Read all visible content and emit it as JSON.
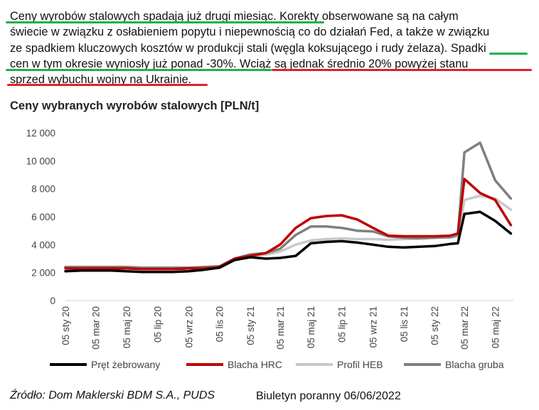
{
  "paragraph": {
    "lines": [
      "Ceny wyrobów stalowych spadają już drugi miesiąc. Korekty obserwowane są na całym",
      "świecie w związku z osłabieniem popytu i niepewnością co do działań Fed, a także w związku",
      "ze spadkiem kluczowych kosztów w produkcji stali (węgla koksującego i rudy żelaza). Spadki",
      "cen w tym okresie wyniosły już ponad -30%. Wciąż są jednak średnio 20% powyżej stanu",
      "sprzed wybuchu wojny na Ukrainie."
    ]
  },
  "highlights": {
    "green": "#22b04b",
    "red": "#e0202a"
  },
  "chart_title": "Ceny wybranych wyrobów stalowych [PLN/t]",
  "chart_data": {
    "type": "line",
    "title": "Ceny wybranych wyrobów stalowych [PLN/t]",
    "xlabel": "",
    "ylabel": "",
    "ylim": [
      0,
      12000
    ],
    "yticks": [
      0,
      2000,
      4000,
      6000,
      8000,
      10000,
      12000
    ],
    "ytick_labels": [
      "0",
      "2 000",
      "4 000",
      "6 000",
      "8 000",
      "10 000",
      "12 000"
    ],
    "xticks": [
      "05 sty 20",
      "05 mar 20",
      "05 maj 20",
      "05 lip 20",
      "05 wrz 20",
      "05 lis 20",
      "05 sty 21",
      "05 mar 21",
      "05 maj 21",
      "05 lip 21",
      "05 wrz 21",
      "05 lis 21",
      "05 sty 22",
      "05 mar 22",
      "05 maj 22"
    ],
    "grid": false,
    "legend_position": "bottom",
    "x": [
      "2020-01-05",
      "2020-02-05",
      "2020-03-05",
      "2020-04-05",
      "2020-05-05",
      "2020-06-05",
      "2020-07-05",
      "2020-08-05",
      "2020-09-05",
      "2020-10-05",
      "2020-11-05",
      "2020-12-05",
      "2021-01-05",
      "2021-02-05",
      "2021-03-05",
      "2021-04-05",
      "2021-05-05",
      "2021-06-05",
      "2021-07-05",
      "2021-08-05",
      "2021-09-05",
      "2021-10-05",
      "2021-11-05",
      "2021-12-05",
      "2022-01-05",
      "2022-02-05",
      "2022-02-20",
      "2022-03-05",
      "2022-04-05",
      "2022-05-05",
      "2022-06-05"
    ],
    "series": [
      {
        "name": "Pręt żebrowany",
        "color": "#000000",
        "values": [
          2100,
          2150,
          2150,
          2150,
          2100,
          2050,
          2050,
          2050,
          2100,
          2200,
          2350,
          2900,
          3100,
          3000,
          3050,
          3200,
          4100,
          4200,
          4250,
          4150,
          4000,
          3850,
          3800,
          3850,
          3900,
          4050,
          4100,
          6200,
          6350,
          5700,
          4800
        ]
      },
      {
        "name": "Blacha HRC",
        "color": "#c00000",
        "values": [
          2300,
          2300,
          2300,
          2300,
          2300,
          2250,
          2250,
          2250,
          2300,
          2300,
          2400,
          3000,
          3200,
          3400,
          4000,
          5200,
          5900,
          6050,
          6100,
          5800,
          5200,
          4650,
          4600,
          4600,
          4600,
          4650,
          4800,
          8700,
          7700,
          7200,
          5400
        ]
      },
      {
        "name": "Profil HEB",
        "color": "#c8c8c8",
        "values": [
          2350,
          2350,
          2350,
          2350,
          2300,
          2300,
          2300,
          2300,
          2300,
          2350,
          2450,
          3000,
          3200,
          3300,
          3500,
          4000,
          4300,
          4400,
          4450,
          4400,
          4400,
          4350,
          4400,
          4450,
          4500,
          4500,
          4600,
          7200,
          7500,
          7300,
          6500
        ]
      },
      {
        "name": "Blacha gruba",
        "color": "#7f7f7f",
        "values": [
          2400,
          2400,
          2400,
          2400,
          2400,
          2350,
          2350,
          2350,
          2350,
          2400,
          2450,
          3000,
          3300,
          3400,
          3700,
          4700,
          5300,
          5300,
          5200,
          5000,
          4950,
          4600,
          4500,
          4450,
          4500,
          4550,
          4700,
          10600,
          11300,
          8600,
          7300
        ]
      }
    ]
  },
  "source": "Źródło: Dom Maklerski BDM S.A., PUDS",
  "bulletin": "Biuletyn poranny 06/06/2022"
}
